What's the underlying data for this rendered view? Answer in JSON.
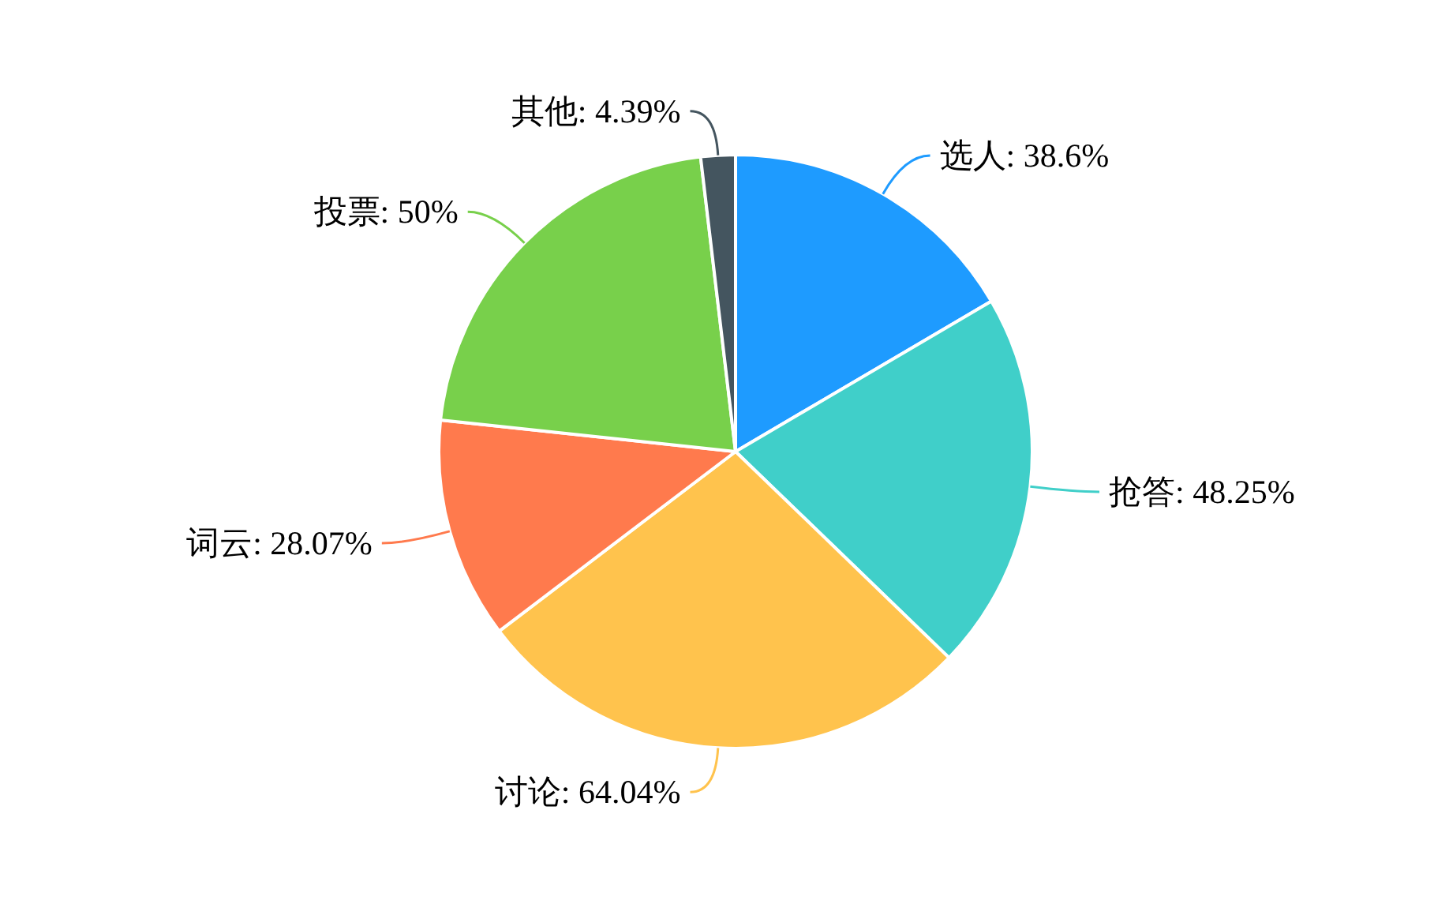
{
  "chart_data": {
    "type": "pie",
    "categories": [
      "选人",
      "抢答",
      "讨论",
      "词云",
      "投票",
      "其他"
    ],
    "values": [
      38.6,
      48.25,
      64.04,
      28.07,
      50,
      4.39
    ],
    "value_labels": [
      "38.6%",
      "48.25%",
      "64.04%",
      "28.07%",
      "50%",
      "4.39%"
    ],
    "colors": [
      "#1e9bff",
      "#40cfc9",
      "#ffc34d",
      "#ff7a4d",
      "#78d04b",
      "#44555f"
    ]
  }
}
